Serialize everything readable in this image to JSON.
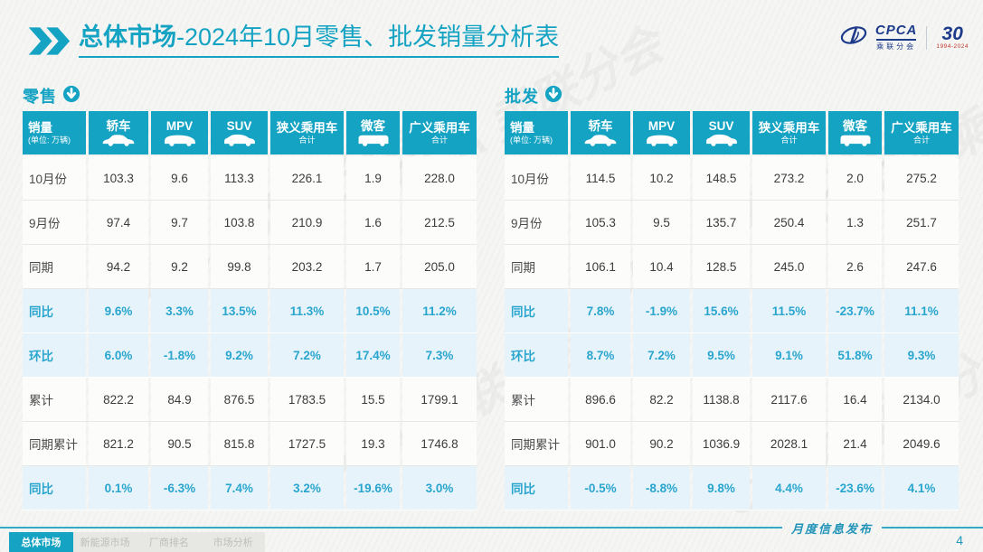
{
  "title": {
    "strong": "总体市场",
    "rest": "-2024年10月零售、批发销量分析表"
  },
  "logo": {
    "cpca": "CPCA",
    "cpca_sub": "乘联分会",
    "anniversary": "30",
    "anniversary_years": "1994-2024"
  },
  "watermark": "CPCA 乘联分会",
  "columns": [
    {
      "key": "sales",
      "line1": "销量",
      "line2": "(单位: 万辆)",
      "icon": null
    },
    {
      "key": "sedan",
      "line1": "轿车",
      "line2": null,
      "icon": "sedan"
    },
    {
      "key": "mpv",
      "line1": "MPV",
      "line2": null,
      "icon": "mpv"
    },
    {
      "key": "suv",
      "line1": "SUV",
      "line2": null,
      "icon": "suv"
    },
    {
      "key": "narrow-total",
      "line1": "狭义乘用车",
      "line2": "合计",
      "icon": null
    },
    {
      "key": "microvan",
      "line1": "微客",
      "line2": null,
      "icon": "minibus"
    },
    {
      "key": "broad-total",
      "line1": "广义乘用车",
      "line2": "合计",
      "icon": null
    }
  ],
  "tables": [
    {
      "name": "零售",
      "rows": [
        {
          "label": "10月份",
          "type": "normal",
          "values": [
            "103.3",
            "9.6",
            "113.3",
            "226.1",
            "1.9",
            "228.0"
          ]
        },
        {
          "label": "9月份",
          "type": "normal",
          "values": [
            "97.4",
            "9.7",
            "103.8",
            "210.9",
            "1.6",
            "212.5"
          ]
        },
        {
          "label": "同期",
          "type": "normal",
          "values": [
            "94.2",
            "9.2",
            "99.8",
            "203.2",
            "1.7",
            "205.0"
          ]
        },
        {
          "label": "同比",
          "type": "highlight",
          "values": [
            "9.6%",
            "3.3%",
            "13.5%",
            "11.3%",
            "10.5%",
            "11.2%"
          ]
        },
        {
          "label": "环比",
          "type": "highlight",
          "values": [
            "6.0%",
            "-1.8%",
            "9.2%",
            "7.2%",
            "17.4%",
            "7.3%"
          ]
        },
        {
          "label": "累计",
          "type": "normal",
          "values": [
            "822.2",
            "84.9",
            "876.5",
            "1783.5",
            "15.5",
            "1799.1"
          ]
        },
        {
          "label": "同期累计",
          "type": "normal",
          "values": [
            "821.2",
            "90.5",
            "815.8",
            "1727.5",
            "19.3",
            "1746.8"
          ]
        },
        {
          "label": "同比",
          "type": "highlight",
          "values": [
            "0.1%",
            "-6.3%",
            "7.4%",
            "3.2%",
            "-19.6%",
            "3.0%"
          ]
        }
      ]
    },
    {
      "name": "批发",
      "rows": [
        {
          "label": "10月份",
          "type": "normal",
          "values": [
            "114.5",
            "10.2",
            "148.5",
            "273.2",
            "2.0",
            "275.2"
          ]
        },
        {
          "label": "9月份",
          "type": "normal",
          "values": [
            "105.3",
            "9.5",
            "135.7",
            "250.4",
            "1.3",
            "251.7"
          ]
        },
        {
          "label": "同期",
          "type": "normal",
          "values": [
            "106.1",
            "10.4",
            "128.5",
            "245.0",
            "2.6",
            "247.6"
          ]
        },
        {
          "label": "同比",
          "type": "highlight",
          "values": [
            "7.8%",
            "-1.9%",
            "15.6%",
            "11.5%",
            "-23.7%",
            "11.1%"
          ]
        },
        {
          "label": "环比",
          "type": "highlight",
          "values": [
            "8.7%",
            "7.2%",
            "9.5%",
            "9.1%",
            "51.8%",
            "9.3%"
          ]
        },
        {
          "label": "累计",
          "type": "normal",
          "values": [
            "896.6",
            "82.2",
            "1138.8",
            "2117.6",
            "16.4",
            "2134.0"
          ]
        },
        {
          "label": "同期累计",
          "type": "normal",
          "values": [
            "901.0",
            "90.2",
            "1036.9",
            "2028.1",
            "21.4",
            "2049.6"
          ]
        },
        {
          "label": "同比",
          "type": "highlight",
          "values": [
            "-0.5%",
            "-8.8%",
            "9.8%",
            "4.4%",
            "-23.6%",
            "4.1%"
          ]
        }
      ]
    }
  ],
  "footer": {
    "note": "月度信息发布",
    "page_number": "4"
  },
  "tabs": [
    {
      "label": "总体市场",
      "active": true
    },
    {
      "label": "新能源市场",
      "active": false
    },
    {
      "label": "厂商排名",
      "active": false
    },
    {
      "label": "市场分析",
      "active": false
    }
  ],
  "colors": {
    "teal": "#14a3c3",
    "highlight_bg": "#e6f3fa",
    "highlight_text": "#2aa6ce",
    "logo_blue": "#1d3b8b"
  }
}
